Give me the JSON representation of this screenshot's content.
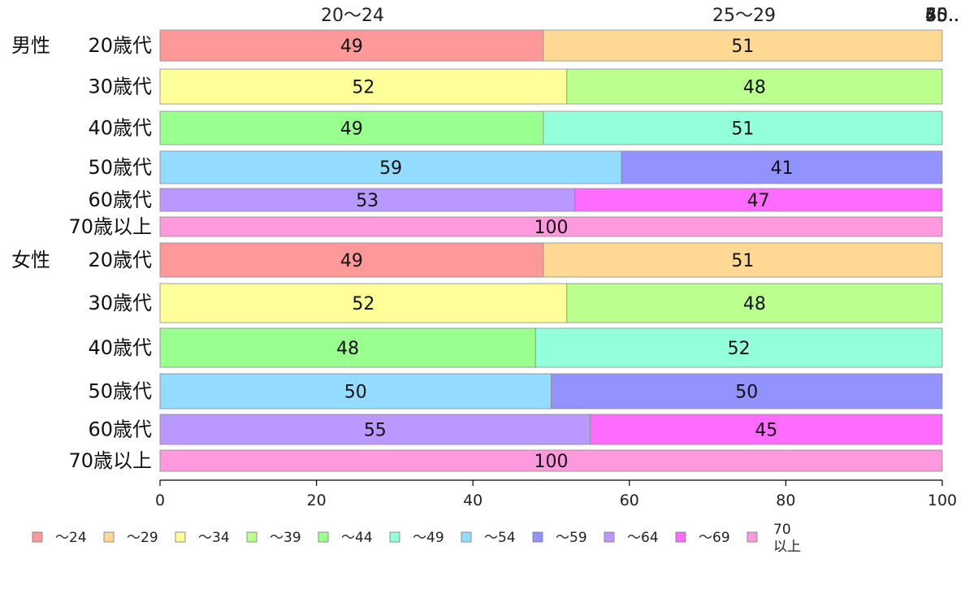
{
  "chart_data": {
    "type": "bar",
    "orientation": "horizontal-stacked-100",
    "legend_position": "bottom",
    "grid": false,
    "xlim": [
      0,
      100
    ],
    "x_ticks": [
      "0",
      "20",
      "40",
      "60",
      "80",
      "100"
    ],
    "top_labels": [
      "20〜24",
      "25〜29",
      "30..",
      "35..",
      "40..",
      "45..",
      "50..",
      "55..",
      "60..",
      "65..",
      "70.."
    ],
    "legend": [
      {
        "label": "〜24",
        "color": "#ff9999"
      },
      {
        "label": "〜29",
        "color": "#ffd993"
      },
      {
        "label": "〜34",
        "color": "#ffff99"
      },
      {
        "label": "〜39",
        "color": "#bbff8f"
      },
      {
        "label": "〜44",
        "color": "#99ff8f"
      },
      {
        "label": "〜49",
        "color": "#93ffdb"
      },
      {
        "label": "〜54",
        "color": "#93dbff"
      },
      {
        "label": "〜59",
        "color": "#9393ff"
      },
      {
        "label": "〜64",
        "color": "#b999ff"
      },
      {
        "label": "〜69",
        "color": "#ff6bff"
      },
      {
        "label": "70\n以上",
        "color": "#ff99dd"
      }
    ],
    "groups": [
      {
        "name": "男性",
        "rows": [
          {
            "label": "20歳代",
            "segments": [
              {
                "value": 49,
                "color": "#ff9999"
              },
              {
                "value": 51,
                "color": "#ffd993"
              }
            ]
          },
          {
            "label": "30歳代",
            "segments": [
              {
                "value": 52,
                "color": "#ffff99"
              },
              {
                "value": 48,
                "color": "#bbff8f"
              }
            ]
          },
          {
            "label": "40歳代",
            "segments": [
              {
                "value": 49,
                "color": "#99ff8f"
              },
              {
                "value": 51,
                "color": "#93ffdb"
              }
            ]
          },
          {
            "label": "50歳代",
            "segments": [
              {
                "value": 59,
                "color": "#93dbff"
              },
              {
                "value": 41,
                "color": "#9393ff"
              }
            ]
          },
          {
            "label": "60歳代",
            "segments": [
              {
                "value": 53,
                "color": "#b999ff"
              },
              {
                "value": 47,
                "color": "#ff6bff"
              }
            ]
          },
          {
            "label": "70歳以上",
            "segments": [
              {
                "value": 100,
                "color": "#ff99dd"
              }
            ]
          }
        ]
      },
      {
        "name": "女性",
        "rows": [
          {
            "label": "20歳代",
            "segments": [
              {
                "value": 49,
                "color": "#ff9999"
              },
              {
                "value": 51,
                "color": "#ffd993"
              }
            ]
          },
          {
            "label": "30歳代",
            "segments": [
              {
                "value": 52,
                "color": "#ffff99"
              },
              {
                "value": 48,
                "color": "#bbff8f"
              }
            ]
          },
          {
            "label": "40歳代",
            "segments": [
              {
                "value": 48,
                "color": "#99ff8f"
              },
              {
                "value": 52,
                "color": "#93ffdb"
              }
            ]
          },
          {
            "label": "50歳代",
            "segments": [
              {
                "value": 50,
                "color": "#93dbff"
              },
              {
                "value": 50,
                "color": "#9393ff"
              }
            ]
          },
          {
            "label": "60歳代",
            "segments": [
              {
                "value": 55,
                "color": "#b999ff"
              },
              {
                "value": 45,
                "color": "#ff6bff"
              }
            ]
          },
          {
            "label": "70歳以上",
            "segments": [
              {
                "value": 100,
                "color": "#ff99dd"
              }
            ]
          }
        ]
      }
    ]
  }
}
